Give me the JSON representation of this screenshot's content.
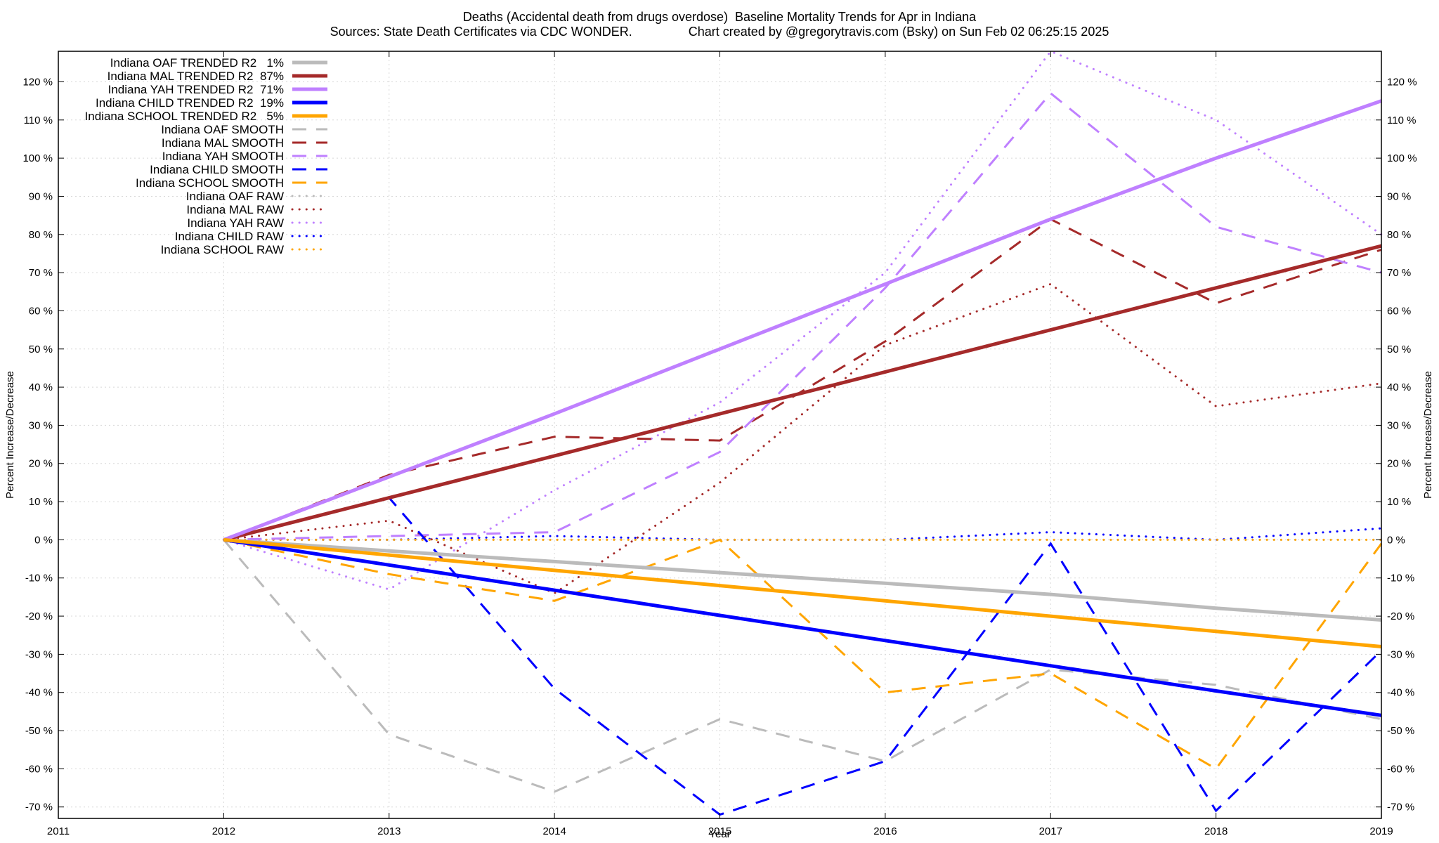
{
  "title": {
    "line1": "Deaths (Accidental death from drugs overdose)  Baseline Mortality Trends for Apr in Indiana",
    "line2": "Sources: State Death Certificates via CDC WONDER.                Chart created by @gregorytravis.com (Bsky) on Sun Feb 02 06:25:15 2025"
  },
  "chart_data": {
    "type": "line",
    "xlabel": "Year",
    "ylabel": "Percent Increase/Decrease",
    "y2label": "Percent Increase/Decrease",
    "xlim": [
      2011,
      2019
    ],
    "ylim": [
      -73,
      128
    ],
    "xticks": [
      "2011",
      "2012",
      "2013",
      "2014",
      "2015",
      "2016",
      "2017",
      "2018",
      "2019"
    ],
    "yticks": [
      -70,
      -60,
      -50,
      -40,
      -30,
      -20,
      -10,
      0,
      10,
      20,
      30,
      40,
      50,
      60,
      70,
      80,
      90,
      100,
      110,
      120
    ],
    "ytick_suffix": " %",
    "grid": true,
    "legend_position": "top-left",
    "x": [
      2012,
      2013,
      2014,
      2015,
      2016,
      2017,
      2018,
      2019
    ],
    "series": [
      {
        "name": "Indiana OAF TRENDED R2   1%",
        "style": "solid",
        "color": "#bbbbbb",
        "values": [
          0,
          -2.9,
          -5.7,
          -8.6,
          -11.4,
          -14.3,
          -17.9,
          -21
        ]
      },
      {
        "name": "Indiana MAL TRENDED R2  87%",
        "style": "solid",
        "color": "#a52a2a",
        "values": [
          0,
          11,
          22,
          33,
          44,
          55,
          66,
          77
        ]
      },
      {
        "name": "Indiana YAH TRENDED R2  71%",
        "style": "solid",
        "color": "#bf80ff",
        "values": [
          0,
          16.5,
          33,
          50,
          67,
          84,
          100,
          115
        ]
      },
      {
        "name": "Indiana CHILD TRENDED R2  19%",
        "style": "solid",
        "color": "#0000ff",
        "values": [
          0,
          -6.6,
          -13.2,
          -19.8,
          -26.4,
          -33,
          -39.6,
          -46
        ]
      },
      {
        "name": "Indiana SCHOOL TRENDED R2   5%",
        "style": "solid",
        "color": "#ffa500",
        "values": [
          0,
          -4,
          -8,
          -12,
          -16,
          -20,
          -24,
          -28
        ]
      },
      {
        "name": "Indiana OAF SMOOTH",
        "style": "dashed",
        "color": "#bbbbbb",
        "values": [
          0,
          -51,
          -66,
          -47,
          -58,
          -34,
          -38,
          -47
        ]
      },
      {
        "name": "Indiana MAL SMOOTH",
        "style": "dashed",
        "color": "#a52a2a",
        "values": [
          0,
          17,
          27,
          26,
          52,
          84,
          62,
          76
        ]
      },
      {
        "name": "Indiana YAH SMOOTH",
        "style": "dashed",
        "color": "#bf80ff",
        "values": [
          0,
          1,
          2,
          23,
          66,
          117,
          82,
          70
        ]
      },
      {
        "name": "Indiana CHILD SMOOTH",
        "style": "dashed",
        "color": "#0000ff",
        "values": [
          0,
          11,
          -39,
          -72,
          -58,
          -1,
          -71,
          -29
        ]
      },
      {
        "name": "Indiana SCHOOL SMOOTH",
        "style": "dashed",
        "color": "#ffa500",
        "values": [
          0,
          -9,
          -16,
          0,
          -40,
          -35,
          -60,
          -1
        ]
      },
      {
        "name": "Indiana OAF RAW",
        "style": "dotted",
        "color": "#bbbbbb",
        "values": [
          0,
          0,
          0,
          0,
          0,
          0,
          0,
          0
        ]
      },
      {
        "name": "Indiana MAL RAW",
        "style": "dotted",
        "color": "#a52a2a",
        "values": [
          0,
          5,
          -14,
          15,
          51,
          67,
          35,
          41
        ]
      },
      {
        "name": "Indiana YAH RAW",
        "style": "dotted",
        "color": "#bf80ff",
        "values": [
          0,
          -13,
          13,
          36,
          70,
          129,
          110,
          80
        ]
      },
      {
        "name": "Indiana CHILD RAW",
        "style": "dotted",
        "color": "#0000ff",
        "values": [
          0,
          0,
          1,
          0,
          0,
          2,
          0,
          3
        ]
      },
      {
        "name": "Indiana SCHOOL RAW",
        "style": "dotted",
        "color": "#ffa500",
        "values": [
          0,
          0,
          0,
          0,
          0,
          0,
          0,
          0
        ]
      }
    ]
  }
}
